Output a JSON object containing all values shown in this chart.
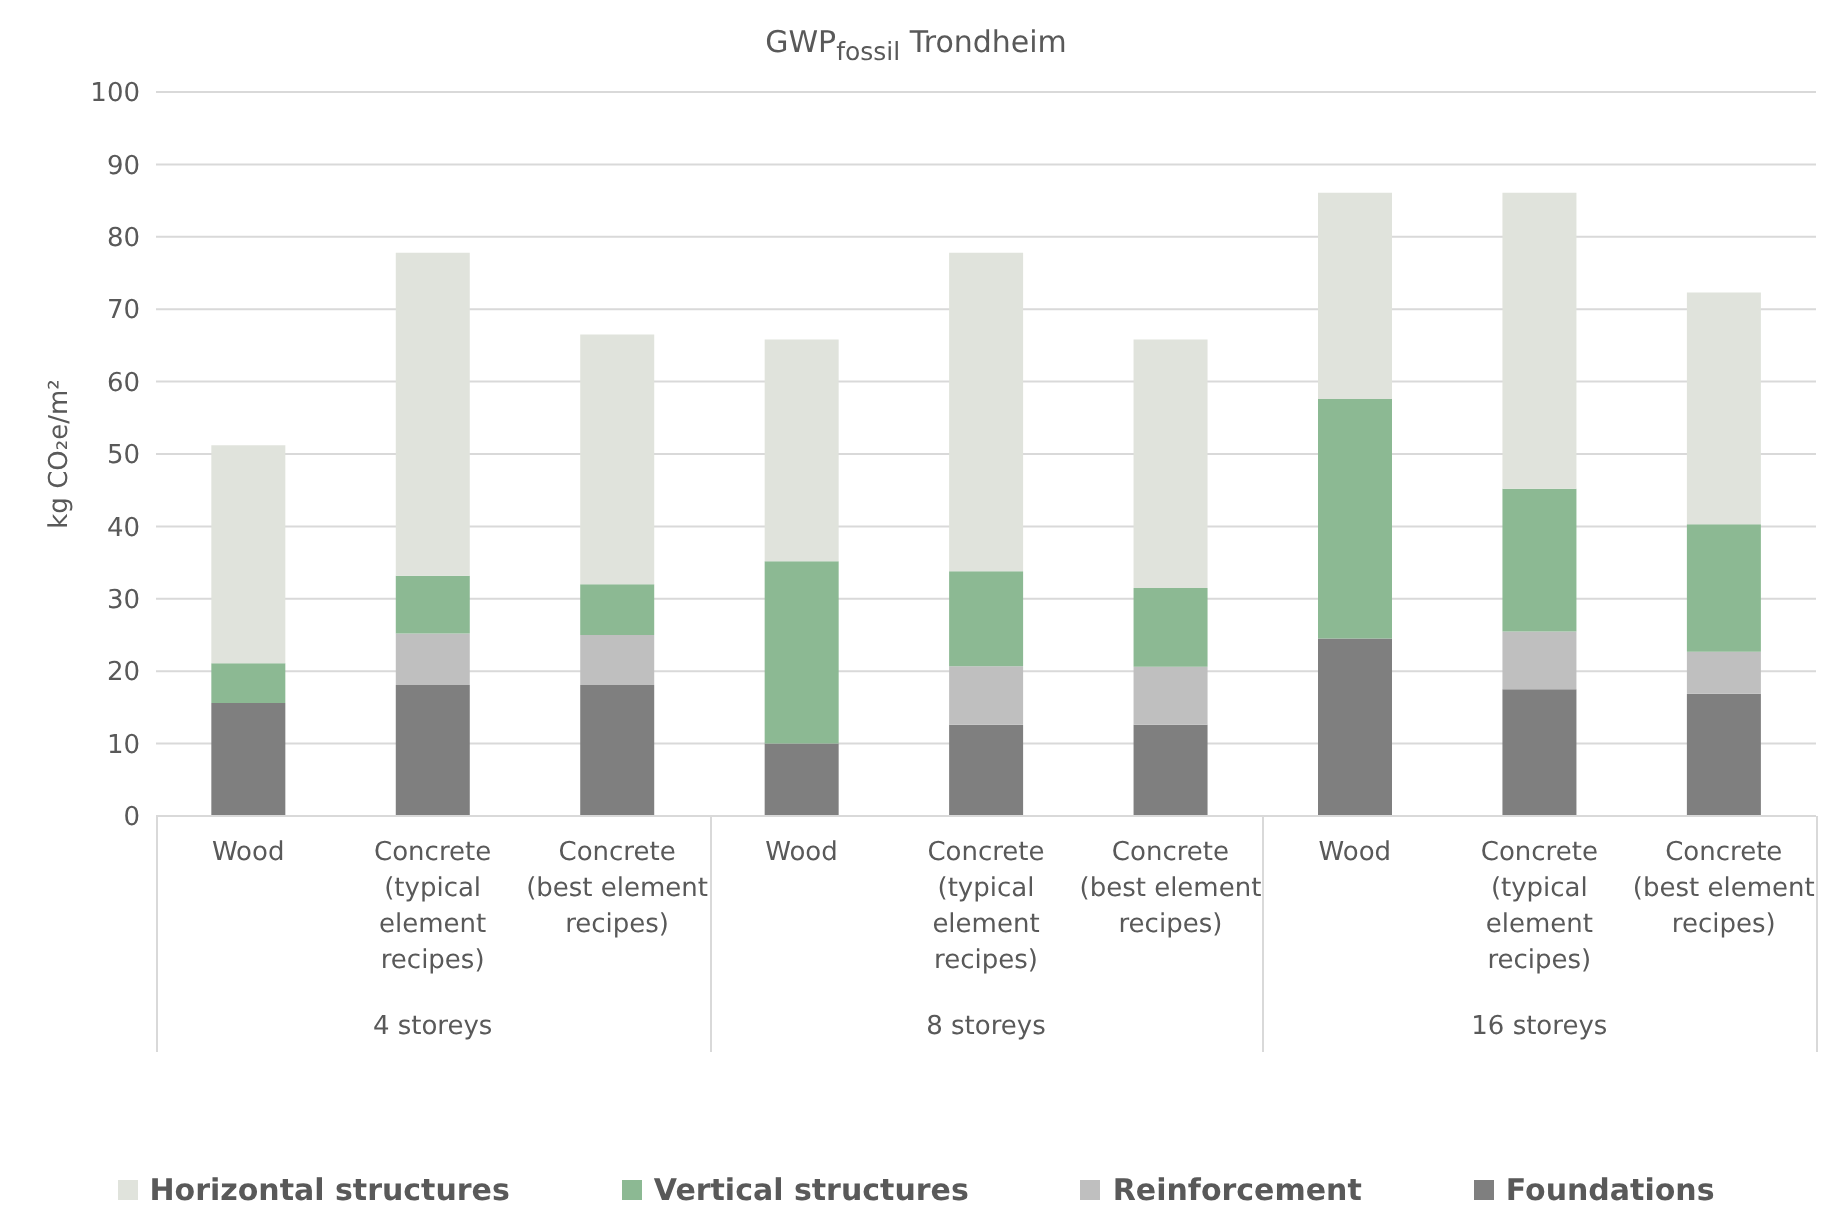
{
  "chart_data": {
    "type": "bar",
    "title": "GWP$_{fossil}$ Trondheim",
    "ylabel": "kg CO₂e/m²",
    "categories": [
      "Wood",
      "Concrete (typical element recipes)",
      "Concrete (best element recipes)",
      "Wood",
      "Concrete (typical element recipes)",
      "Concrete (best element recipes)",
      "Wood",
      "Concrete (typical element recipes)",
      "Concrete (best element recipes)"
    ],
    "annotations": [
      "4 storeys",
      "8 storeys",
      "16 storeys"
    ],
    "stacked": true,
    "series": [
      {
        "name": "Foundations",
        "color": "#7f7f7f",
        "values": [
          15.6,
          18.1,
          18.1,
          10.0,
          12.6,
          12.6,
          24.5,
          17.5,
          16.9
        ]
      },
      {
        "name": "Reinforcement",
        "color": "#bfbfbf",
        "values": [
          0,
          7.1,
          6.9,
          0,
          8.1,
          8.0,
          0,
          8.0,
          5.8
        ]
      },
      {
        "name": "Vertical structures",
        "color": "#8cb993",
        "values": [
          5.5,
          8.0,
          7.0,
          25.2,
          13.1,
          10.9,
          33.1,
          19.7,
          17.6
        ]
      },
      {
        "name": "Horizontal structures",
        "color": "#e0e3dc",
        "values": [
          30.1,
          44.6,
          34.5,
          30.6,
          44.0,
          34.3,
          28.5,
          40.9,
          32.0
        ]
      }
    ],
    "ylim": [
      0,
      100
    ],
    "yticks": [
      0,
      10,
      20,
      30,
      40,
      50,
      60,
      70,
      80,
      90,
      100
    ],
    "grid": "y",
    "legend": "bottom"
  }
}
